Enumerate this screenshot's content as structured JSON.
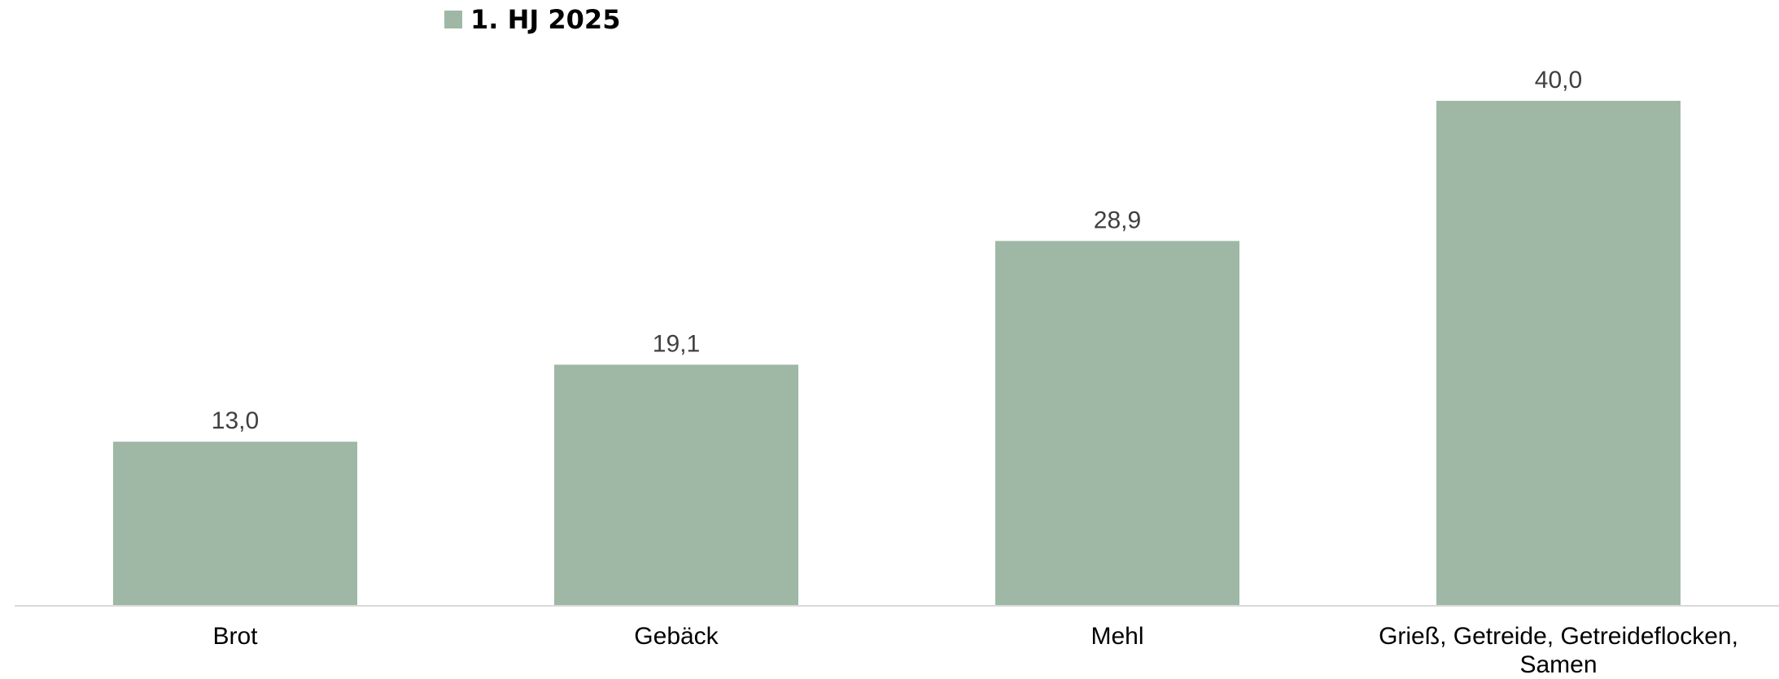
{
  "chart_data": {
    "type": "bar",
    "categories": [
      [
        "Brot"
      ],
      [
        "Gebäck"
      ],
      [
        "Mehl"
      ],
      [
        "Grieß, Getreide, Getreideflocken,",
        "Samen"
      ]
    ],
    "series": [
      {
        "name": "1. HJ 2025",
        "color": "#9eb8a5",
        "values": [
          13.0,
          19.1,
          28.9,
          40.0
        ],
        "labels": [
          "13,0",
          "19,1",
          "28,9",
          "40,0"
        ]
      }
    ],
    "ylim": [
      0,
      40
    ],
    "grid": false,
    "legend_position": "top-left",
    "axis_color": "#d9d9d9"
  }
}
